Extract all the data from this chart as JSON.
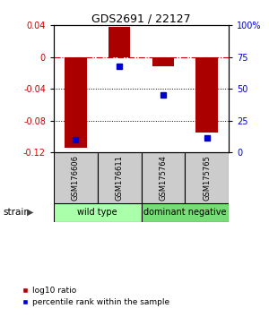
{
  "title": "GDS2691 / 22127",
  "samples": [
    "GSM176606",
    "GSM176611",
    "GSM175764",
    "GSM175765"
  ],
  "log10_ratio": [
    -0.115,
    0.038,
    -0.012,
    -0.095
  ],
  "percentile_rank": [
    10,
    68,
    45,
    11
  ],
  "ylim_left": [
    -0.12,
    0.04
  ],
  "ylim_right": [
    0,
    100
  ],
  "bar_color": "#AA0000",
  "dot_color": "#0000CC",
  "dotted_lines": [
    -0.04,
    -0.08
  ],
  "groups": [
    {
      "label": "wild type",
      "indices": [
        0,
        1
      ],
      "color": "#aaffaa"
    },
    {
      "label": "dominant negative",
      "indices": [
        2,
        3
      ],
      "color": "#77dd77"
    }
  ],
  "strain_label": "strain",
  "legend_red": "log10 ratio",
  "legend_blue": "percentile rank within the sample",
  "background_color": "#ffffff",
  "tick_color_left": "#CC0000",
  "tick_color_right": "#0000CC",
  "right_yticks": [
    0,
    25,
    50,
    75,
    100
  ],
  "right_ytick_labels": [
    "0",
    "25",
    "50",
    "75",
    "100%"
  ],
  "left_yticks": [
    -0.12,
    -0.08,
    -0.04,
    0,
    0.04
  ],
  "left_ytick_labels": [
    "-0.12",
    "-0.08",
    "-0.04",
    "0",
    "0.04"
  ]
}
